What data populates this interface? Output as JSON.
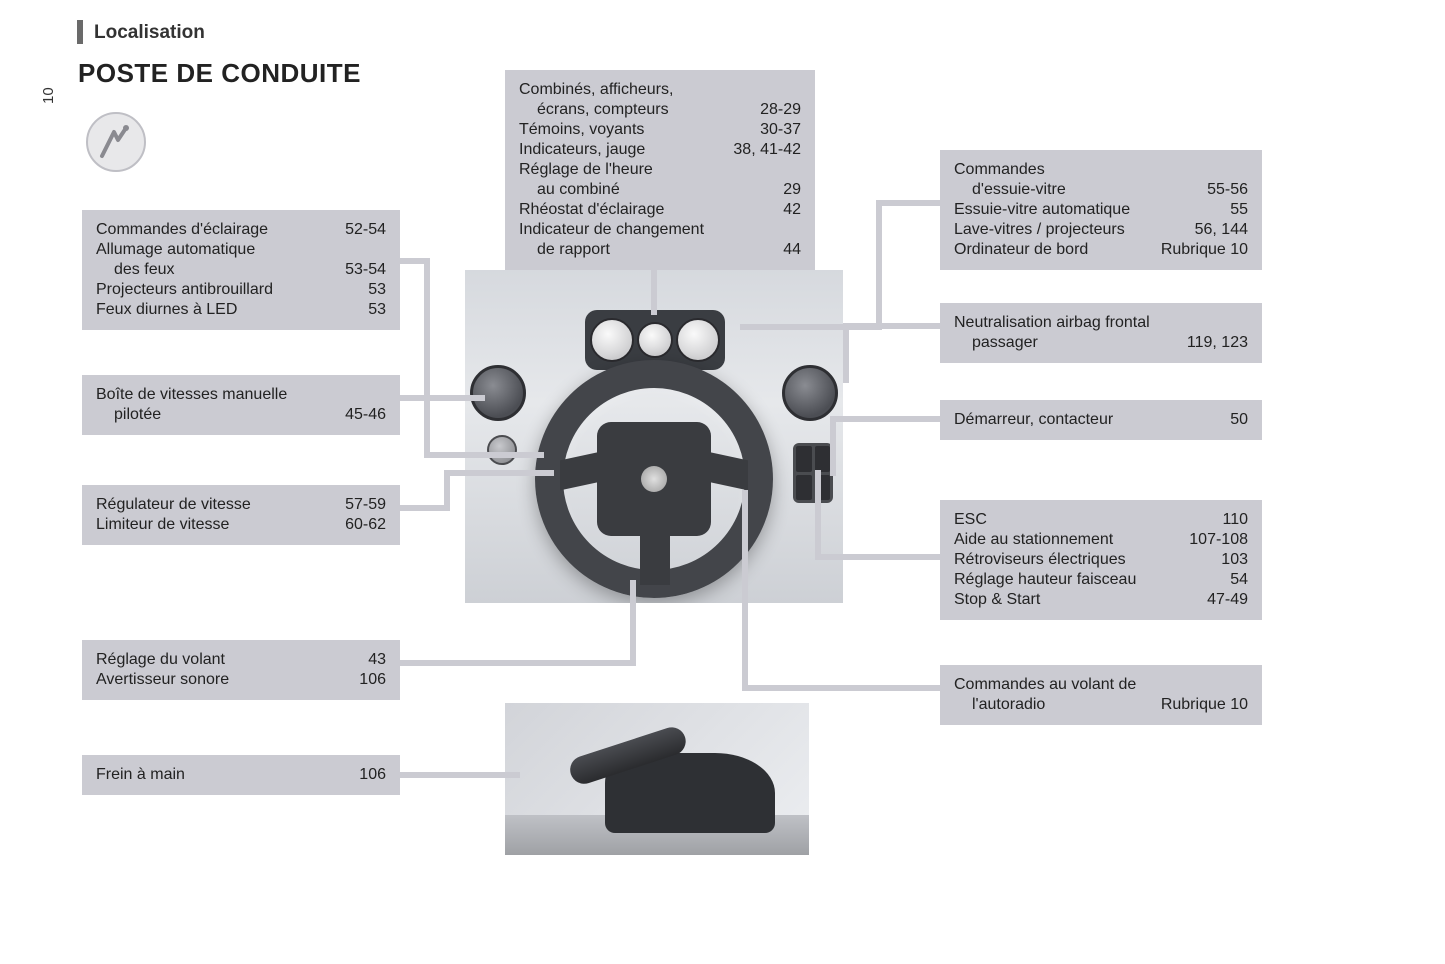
{
  "page_number": "10",
  "section": "Localisation",
  "title": "POSTE DE CONDUITE",
  "colors": {
    "box_bg": "#cbcbd2",
    "leader": "#cbcbd2",
    "text": "#222222",
    "page_bg": "#ffffff"
  },
  "boxes": {
    "top_center": {
      "rows": [
        {
          "label": "Combinés, afficheurs,",
          "page": ""
        },
        {
          "label": "écrans, compteurs",
          "page": "28-29",
          "indent": true
        },
        {
          "label": "Témoins, voyants",
          "page": "30-37"
        },
        {
          "label": "Indicateurs, jauge",
          "page": "38, 41-42"
        },
        {
          "label": "Réglage de l'heure",
          "page": ""
        },
        {
          "label": "au combiné",
          "page": "29",
          "indent": true
        },
        {
          "label": "Rhéostat d'éclairage",
          "page": "42"
        },
        {
          "label": "Indicateur de changement",
          "page": ""
        },
        {
          "label": "de rapport",
          "page": "44",
          "indent": true
        }
      ]
    },
    "left1": {
      "rows": [
        {
          "label": "Commandes d'éclairage",
          "page": "52-54"
        },
        {
          "label": "Allumage automatique",
          "page": ""
        },
        {
          "label": "des feux",
          "page": "53-54",
          "indent": true
        },
        {
          "label": "Projecteurs antibrouillard",
          "page": "53"
        },
        {
          "label": "Feux diurnes à LED",
          "page": "53"
        }
      ]
    },
    "left2": {
      "rows": [
        {
          "label": "Boîte de vitesses manuelle",
          "page": ""
        },
        {
          "label": "pilotée",
          "page": "45-46",
          "indent": true
        }
      ]
    },
    "left3": {
      "rows": [
        {
          "label": "Régulateur de vitesse",
          "page": "57-59"
        },
        {
          "label": "Limiteur de vitesse",
          "page": "60-62"
        }
      ]
    },
    "left4": {
      "rows": [
        {
          "label": "Réglage du volant",
          "page": "43"
        },
        {
          "label": "Avertisseur sonore",
          "page": "106"
        }
      ]
    },
    "left5": {
      "rows": [
        {
          "label": "Frein à main",
          "page": "106"
        }
      ]
    },
    "right1": {
      "rows": [
        {
          "label": "Commandes",
          "page": ""
        },
        {
          "label": "d'essuie-vitre",
          "page": "55-56",
          "indent": true
        },
        {
          "label": "Essuie-vitre automatique",
          "page": "55"
        },
        {
          "label": "Lave-vitres / projecteurs",
          "page": "56, 144"
        },
        {
          "label": "Ordinateur de bord",
          "page": "Rubrique 10"
        }
      ]
    },
    "right2": {
      "rows": [
        {
          "label": "Neutralisation airbag frontal",
          "page": ""
        },
        {
          "label": "passager",
          "page": "119, 123",
          "indent": true
        }
      ]
    },
    "right3": {
      "rows": [
        {
          "label": "Démarreur, contacteur",
          "page": "50"
        }
      ]
    },
    "right4": {
      "rows": [
        {
          "label": "ESC",
          "page": "110"
        },
        {
          "label": "Aide au stationnement",
          "page": "107-108"
        },
        {
          "label": "Rétroviseurs électriques",
          "page": "103"
        },
        {
          "label": "Réglage hauteur faisceau",
          "page": "54"
        },
        {
          "label": "Stop & Start",
          "page": "47-49"
        }
      ]
    },
    "right5": {
      "rows": [
        {
          "label": "Commandes au volant de",
          "page": ""
        },
        {
          "label": "l'autoradio",
          "page": "Rubrique 10",
          "indent": true
        }
      ]
    }
  }
}
